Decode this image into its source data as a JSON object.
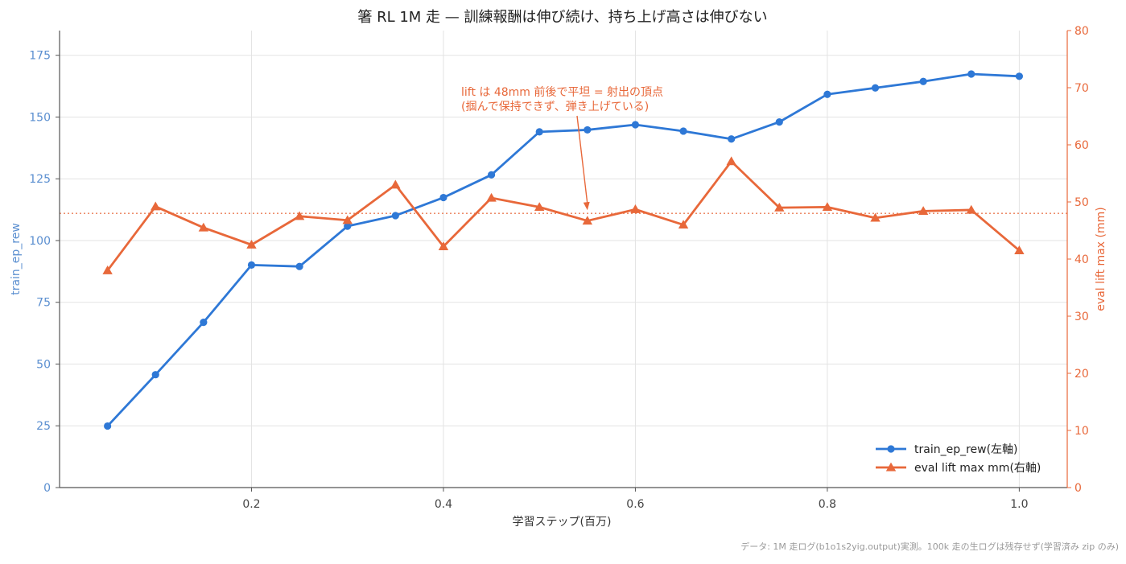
{
  "chart_data": {
    "type": "line",
    "title": "箸 RL 1M 走 — 訓練報酬は伸び続け、持ち上げ高さは伸びない",
    "xlabel": "学習ステップ(百万)",
    "ylabel_left": "train_ep_rew",
    "ylabel_right": "eval lift max (mm)",
    "xlim": [
      0.0,
      1.05
    ],
    "ylim_left": [
      0,
      185
    ],
    "ylim_right": [
      0,
      80
    ],
    "x_ticks": [
      0.2,
      0.4,
      0.6,
      0.8,
      1.0
    ],
    "x_tick_labels": [
      "0.2",
      "0.4",
      "0.6",
      "0.8",
      "1.0"
    ],
    "y_left_ticks": [
      0,
      25,
      50,
      75,
      100,
      125,
      150,
      175
    ],
    "y_right_ticks": [
      0,
      10,
      20,
      30,
      40,
      50,
      60,
      70,
      80
    ],
    "grid": true,
    "legend_position": "lower-right",
    "x": [
      0.05,
      0.1,
      0.15,
      0.2,
      0.25,
      0.3,
      0.35,
      0.4,
      0.45,
      0.5,
      0.55,
      0.6,
      0.65,
      0.7,
      0.75,
      0.8,
      0.85,
      0.9,
      0.95,
      1.0
    ],
    "series": [
      {
        "name": "train_ep_rew(左軸)",
        "axis": "left",
        "color": "#2e78d6",
        "marker": "circle",
        "values": [
          24.9,
          45.7,
          66.9,
          90.1,
          89.5,
          105.8,
          110.1,
          117.4,
          126.6,
          144.0,
          144.8,
          146.9,
          144.3,
          141.1,
          148.0,
          159.2,
          161.8,
          164.4,
          167.4,
          166.5
        ]
      },
      {
        "name": "eval lift max mm(右軸)",
        "axis": "right",
        "color": "#e8683a",
        "marker": "triangle",
        "values": [
          38.0,
          49.2,
          45.5,
          42.5,
          47.5,
          46.8,
          53.0,
          42.2,
          50.7,
          49.1,
          46.7,
          48.7,
          46.0,
          57.1,
          49.0,
          49.1,
          47.2,
          48.4,
          48.6,
          41.5
        ]
      }
    ],
    "reference_line": {
      "axis": "right",
      "value": 48,
      "color": "#e8683a",
      "style": "dotted"
    },
    "annotation": {
      "lines": [
        "lift は 48mm 前後で平坦 = 射出の頂点",
        "(掴んで保持できず、弾き上げている)"
      ],
      "arrow_to": {
        "x": 0.55,
        "y_right": 48
      },
      "color": "#e8683a"
    },
    "footnote": "データ: 1M 走ログ(b1o1s2yig.output)実測。100k 走の生ログは残存せず(学習済み zip のみ)",
    "colors": {
      "left_axis_text": "#5b8fd0",
      "right_axis_text": "#e8683a",
      "grid": "#e3e3e3",
      "axis": "#555555",
      "footnote": "#9a9a9a"
    }
  }
}
